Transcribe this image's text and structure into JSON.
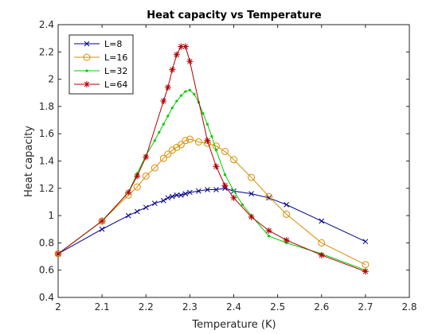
{
  "chart_data": {
    "type": "line",
    "title": "Heat capacity vs Temperature",
    "xlabel": "Temperature (K)",
    "ylabel": "Heat capacity",
    "xlim": [
      2,
      2.8
    ],
    "ylim": [
      0.4,
      2.4
    ],
    "xticks": [
      "2",
      "2.1",
      "2.2",
      "2.3",
      "2.4",
      "2.5",
      "2.6",
      "2.7",
      "2.8"
    ],
    "yticks": [
      "0.4",
      "0.6",
      "0.8",
      "1",
      "1.2",
      "1.4",
      "1.6",
      "1.8",
      "2",
      "2.2",
      "2.4"
    ],
    "grid": false,
    "legend_position": "top-left",
    "series": [
      {
        "name": "L=8",
        "color": "#00008b",
        "marker": "x",
        "x": [
          2.0,
          2.1,
          2.16,
          2.18,
          2.2,
          2.22,
          2.24,
          2.25,
          2.26,
          2.27,
          2.28,
          2.29,
          2.3,
          2.32,
          2.34,
          2.36,
          2.38,
          2.4,
          2.44,
          2.48,
          2.52,
          2.6,
          2.7
        ],
        "y": [
          0.72,
          0.9,
          1.0,
          1.03,
          1.06,
          1.09,
          1.11,
          1.13,
          1.14,
          1.15,
          1.15,
          1.16,
          1.17,
          1.18,
          1.19,
          1.19,
          1.2,
          1.18,
          1.16,
          1.13,
          1.08,
          0.96,
          0.81
        ]
      },
      {
        "name": "L=16",
        "color": "#d98c00",
        "marker": "o",
        "x": [
          2.0,
          2.1,
          2.16,
          2.18,
          2.2,
          2.22,
          2.24,
          2.25,
          2.26,
          2.27,
          2.28,
          2.29,
          2.3,
          2.32,
          2.34,
          2.36,
          2.38,
          2.4,
          2.44,
          2.48,
          2.52,
          2.6,
          2.7
        ],
        "y": [
          0.72,
          0.96,
          1.15,
          1.21,
          1.29,
          1.35,
          1.42,
          1.45,
          1.48,
          1.5,
          1.52,
          1.55,
          1.56,
          1.54,
          1.53,
          1.51,
          1.47,
          1.41,
          1.28,
          1.14,
          1.01,
          0.8,
          0.64
        ]
      },
      {
        "name": "L=32",
        "color": "#00cc00",
        "marker": ".",
        "x": [
          2.0,
          2.1,
          2.16,
          2.18,
          2.2,
          2.22,
          2.23,
          2.24,
          2.25,
          2.26,
          2.27,
          2.28,
          2.29,
          2.3,
          2.31,
          2.32,
          2.33,
          2.34,
          2.35,
          2.36,
          2.38,
          2.4,
          2.42,
          2.44,
          2.48,
          2.52,
          2.6,
          2.7
        ],
        "y": [
          0.72,
          0.96,
          1.17,
          1.31,
          1.44,
          1.55,
          1.61,
          1.67,
          1.73,
          1.79,
          1.84,
          1.88,
          1.91,
          1.92,
          1.89,
          1.83,
          1.75,
          1.67,
          1.58,
          1.48,
          1.3,
          1.18,
          1.08,
          1.0,
          0.85,
          0.8,
          0.72,
          0.6
        ]
      },
      {
        "name": "L=64",
        "color": "#b00000",
        "marker": "*",
        "x": [
          2.0,
          2.1,
          2.16,
          2.18,
          2.2,
          2.24,
          2.25,
          2.26,
          2.27,
          2.28,
          2.29,
          2.3,
          2.34,
          2.36,
          2.38,
          2.4,
          2.44,
          2.48,
          2.52,
          2.6,
          2.7
        ],
        "y": [
          0.72,
          0.96,
          1.17,
          1.29,
          1.43,
          1.84,
          1.94,
          2.07,
          2.18,
          2.24,
          2.24,
          2.13,
          1.55,
          1.36,
          1.22,
          1.13,
          0.99,
          0.89,
          0.82,
          0.71,
          0.59
        ]
      }
    ]
  }
}
